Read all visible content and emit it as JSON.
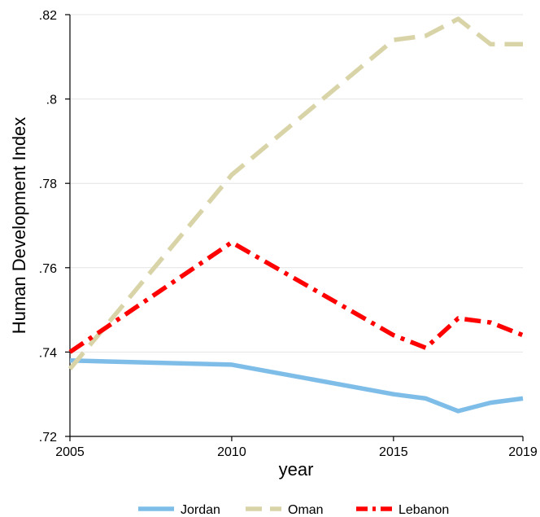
{
  "chart_data": {
    "type": "line",
    "title": "",
    "xlabel": "year",
    "ylabel": "Human Development Index",
    "xlim": [
      2005,
      2019
    ],
    "ylim": [
      0.72,
      0.82
    ],
    "x_ticks": [
      2005,
      2010,
      2015,
      2019
    ],
    "x_tick_labels": [
      "2005",
      "2010",
      "2015",
      "2019"
    ],
    "y_ticks": [
      0.72,
      0.74,
      0.76,
      0.78,
      0.8,
      0.82
    ],
    "y_tick_labels": [
      ".72",
      ".74",
      ".76",
      ".78",
      ".8",
      ".82"
    ],
    "grid": "horizontal",
    "legend_position": "bottom",
    "series": [
      {
        "name": "Jordan",
        "color": "#7fbde9",
        "dash": "solid",
        "points": [
          [
            2005,
            0.738
          ],
          [
            2010,
            0.737
          ],
          [
            2015,
            0.73
          ],
          [
            2016,
            0.729
          ],
          [
            2017,
            0.726
          ],
          [
            2018,
            0.728
          ],
          [
            2019,
            0.729
          ]
        ]
      },
      {
        "name": "Oman",
        "color": "#d9d4a8",
        "dash": "dash",
        "points": [
          [
            2005,
            0.736
          ],
          [
            2010,
            0.782
          ],
          [
            2015,
            0.814
          ],
          [
            2016,
            0.815
          ],
          [
            2017,
            0.819
          ],
          [
            2018,
            0.813
          ],
          [
            2019,
            0.813
          ]
        ]
      },
      {
        "name": "Lebanon",
        "color": "#ff0000",
        "dash": "dashdot",
        "points": [
          [
            2005,
            0.74
          ],
          [
            2010,
            0.766
          ],
          [
            2015,
            0.744
          ],
          [
            2016,
            0.741
          ],
          [
            2017,
            0.748
          ],
          [
            2018,
            0.747
          ],
          [
            2019,
            0.744
          ]
        ]
      }
    ]
  }
}
